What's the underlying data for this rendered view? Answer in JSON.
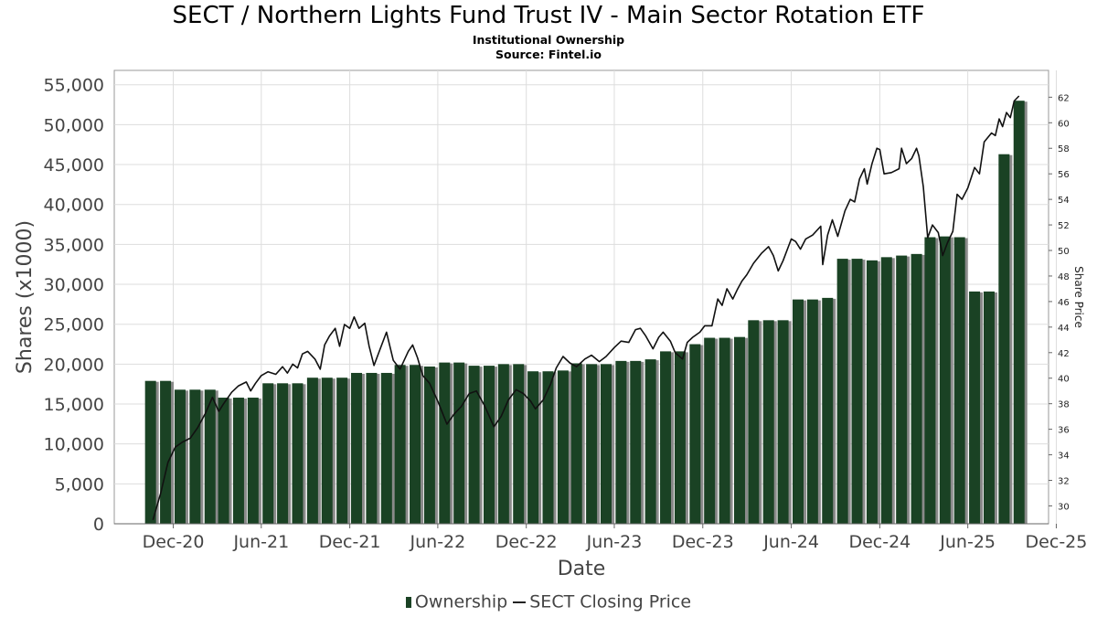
{
  "chart_data": {
    "type": "bar",
    "title": "SECT / Northern Lights Fund Trust IV - Main Sector Rotation ETF",
    "subtitle": "Institutional Ownership",
    "source": "Source: Fintel.io",
    "xlabel": "Date",
    "ylabel": "Shares (x1000)",
    "y2label": "Share Price",
    "x_ticks": [
      "Dec-20",
      "Jun-21",
      "Dec-21",
      "Jun-22",
      "Dec-22",
      "Jun-23",
      "Dec-23",
      "Jun-24",
      "Dec-24",
      "Jun-25",
      "Dec-25"
    ],
    "x_range": [
      "2020-08-01",
      "2025-11-15"
    ],
    "y_ticks": [
      "0",
      "5,000",
      "10,000",
      "15,000",
      "20,000",
      "25,000",
      "30,000",
      "35,000",
      "40,000",
      "45,000",
      "50,000",
      "55,000"
    ],
    "ylim": [
      0,
      56000
    ],
    "y2_ticks": [
      "30",
      "32",
      "34",
      "36",
      "38",
      "40",
      "42",
      "44",
      "46",
      "48",
      "50",
      "52",
      "54",
      "56",
      "58",
      "60",
      "62"
    ],
    "y2lim": [
      28.6,
      63.6
    ],
    "grid": true,
    "legend_position": "bottom-center",
    "colors": {
      "bar": "#1a4224",
      "bar_shadow": "#8a8a8a",
      "line": "#111111",
      "grid": "#dddddd"
    },
    "series": [
      {
        "name": "Ownership",
        "kind": "bar",
        "points": [
          [
            "2020-10-15",
            17900
          ],
          [
            "2020-11-15",
            17900
          ],
          [
            "2020-12-15",
            16800
          ],
          [
            "2021-01-15",
            16800
          ],
          [
            "2021-02-15",
            16800
          ],
          [
            "2021-03-15",
            15800
          ],
          [
            "2021-04-15",
            15800
          ],
          [
            "2021-05-15",
            15800
          ],
          [
            "2021-06-15",
            17600
          ],
          [
            "2021-07-15",
            17600
          ],
          [
            "2021-08-15",
            17600
          ],
          [
            "2021-09-15",
            18300
          ],
          [
            "2021-10-15",
            18300
          ],
          [
            "2021-11-15",
            18300
          ],
          [
            "2021-12-15",
            18900
          ],
          [
            "2022-01-15",
            18900
          ],
          [
            "2022-02-15",
            18900
          ],
          [
            "2022-03-15",
            19900
          ],
          [
            "2022-04-15",
            19900
          ],
          [
            "2022-05-15",
            19700
          ],
          [
            "2022-06-15",
            20200
          ],
          [
            "2022-07-15",
            20200
          ],
          [
            "2022-08-15",
            19800
          ],
          [
            "2022-09-15",
            19800
          ],
          [
            "2022-10-15",
            20000
          ],
          [
            "2022-11-15",
            20000
          ],
          [
            "2022-12-15",
            19100
          ],
          [
            "2023-01-15",
            19100
          ],
          [
            "2023-02-15",
            19200
          ],
          [
            "2023-03-15",
            20100
          ],
          [
            "2023-04-15",
            20000
          ],
          [
            "2023-05-15",
            20000
          ],
          [
            "2023-06-15",
            20400
          ],
          [
            "2023-07-15",
            20400
          ],
          [
            "2023-08-15",
            20600
          ],
          [
            "2023-09-15",
            21600
          ],
          [
            "2023-10-15",
            21600
          ],
          [
            "2023-11-15",
            22500
          ],
          [
            "2023-12-15",
            23300
          ],
          [
            "2024-01-15",
            23300
          ],
          [
            "2024-02-15",
            23400
          ],
          [
            "2024-03-15",
            25500
          ],
          [
            "2024-04-15",
            25500
          ],
          [
            "2024-05-15",
            25500
          ],
          [
            "2024-06-15",
            28100
          ],
          [
            "2024-07-15",
            28100
          ],
          [
            "2024-08-15",
            28300
          ],
          [
            "2024-09-15",
            33200
          ],
          [
            "2024-10-15",
            33200
          ],
          [
            "2024-11-15",
            33000
          ],
          [
            "2024-12-15",
            33400
          ],
          [
            "2025-01-15",
            33600
          ],
          [
            "2025-02-15",
            33800
          ],
          [
            "2025-03-15",
            35900
          ],
          [
            "2025-04-15",
            36000
          ],
          [
            "2025-05-15",
            35900
          ],
          [
            "2025-06-15",
            29100
          ],
          [
            "2025-07-15",
            29100
          ],
          [
            "2025-08-15",
            46300
          ],
          [
            "2025-09-15",
            53000
          ]
        ]
      },
      {
        "name": "SECT Closing Price",
        "kind": "line",
        "points": [
          [
            "2020-10-20",
            28.9
          ],
          [
            "2020-11-05",
            31.0
          ],
          [
            "2020-11-20",
            33.4
          ],
          [
            "2020-12-05",
            34.6
          ],
          [
            "2020-12-20",
            35.0
          ],
          [
            "2021-01-05",
            35.3
          ],
          [
            "2021-01-20",
            36.1
          ],
          [
            "2021-02-05",
            37.2
          ],
          [
            "2021-02-20",
            38.5
          ],
          [
            "2021-03-05",
            37.4
          ],
          [
            "2021-03-15",
            38.0
          ],
          [
            "2021-04-01",
            38.9
          ],
          [
            "2021-04-15",
            39.4
          ],
          [
            "2021-05-01",
            39.7
          ],
          [
            "2021-05-10",
            39.0
          ],
          [
            "2021-05-20",
            39.6
          ],
          [
            "2021-06-01",
            40.2
          ],
          [
            "2021-06-15",
            40.5
          ],
          [
            "2021-07-01",
            40.3
          ],
          [
            "2021-07-15",
            40.9
          ],
          [
            "2021-07-25",
            40.4
          ],
          [
            "2021-08-05",
            41.1
          ],
          [
            "2021-08-15",
            40.8
          ],
          [
            "2021-08-25",
            41.9
          ],
          [
            "2021-09-05",
            42.1
          ],
          [
            "2021-09-20",
            41.5
          ],
          [
            "2021-10-01",
            40.7
          ],
          [
            "2021-10-10",
            42.6
          ],
          [
            "2021-10-20",
            43.3
          ],
          [
            "2021-11-01",
            43.9
          ],
          [
            "2021-11-10",
            42.5
          ],
          [
            "2021-11-20",
            44.2
          ],
          [
            "2021-12-01",
            43.9
          ],
          [
            "2021-12-10",
            44.8
          ],
          [
            "2021-12-20",
            43.9
          ],
          [
            "2022-01-01",
            44.3
          ],
          [
            "2022-01-10",
            42.5
          ],
          [
            "2022-01-20",
            41.0
          ],
          [
            "2022-02-01",
            42.2
          ],
          [
            "2022-02-15",
            43.6
          ],
          [
            "2022-03-01",
            41.4
          ],
          [
            "2022-03-15",
            40.7
          ],
          [
            "2022-04-01",
            42.1
          ],
          [
            "2022-04-10",
            42.6
          ],
          [
            "2022-04-20",
            41.6
          ],
          [
            "2022-05-01",
            40.2
          ],
          [
            "2022-05-15",
            39.6
          ],
          [
            "2022-06-01",
            38.2
          ],
          [
            "2022-06-20",
            36.4
          ],
          [
            "2022-07-05",
            37.2
          ],
          [
            "2022-07-20",
            37.8
          ],
          [
            "2022-08-05",
            38.8
          ],
          [
            "2022-08-20",
            39.0
          ],
          [
            "2022-09-05",
            37.9
          ],
          [
            "2022-09-25",
            36.2
          ],
          [
            "2022-10-10",
            37.0
          ],
          [
            "2022-10-25",
            38.3
          ],
          [
            "2022-11-10",
            39.1
          ],
          [
            "2022-11-25",
            38.8
          ],
          [
            "2022-12-10",
            38.2
          ],
          [
            "2022-12-20",
            37.6
          ],
          [
            "2023-01-05",
            38.3
          ],
          [
            "2023-01-20",
            39.5
          ],
          [
            "2023-02-01",
            40.8
          ],
          [
            "2023-02-15",
            41.7
          ],
          [
            "2023-03-01",
            41.2
          ],
          [
            "2023-03-15",
            40.9
          ],
          [
            "2023-04-01",
            41.5
          ],
          [
            "2023-04-15",
            41.8
          ],
          [
            "2023-05-01",
            41.3
          ],
          [
            "2023-05-15",
            41.7
          ],
          [
            "2023-06-01",
            42.4
          ],
          [
            "2023-06-15",
            42.9
          ],
          [
            "2023-07-01",
            42.8
          ],
          [
            "2023-07-15",
            43.8
          ],
          [
            "2023-07-25",
            43.9
          ],
          [
            "2023-08-05",
            43.3
          ],
          [
            "2023-08-20",
            42.3
          ],
          [
            "2023-09-01",
            43.2
          ],
          [
            "2023-09-10",
            43.6
          ],
          [
            "2023-09-25",
            42.9
          ],
          [
            "2023-10-05",
            42.0
          ],
          [
            "2023-10-20",
            41.5
          ],
          [
            "2023-10-30",
            42.8
          ],
          [
            "2023-11-10",
            43.2
          ],
          [
            "2023-11-25",
            43.6
          ],
          [
            "2023-12-05",
            44.1
          ],
          [
            "2023-12-20",
            44.1
          ],
          [
            "2024-01-01",
            46.2
          ],
          [
            "2024-01-10",
            45.7
          ],
          [
            "2024-01-20",
            47.0
          ],
          [
            "2024-02-01",
            46.2
          ],
          [
            "2024-02-10",
            46.9
          ],
          [
            "2024-02-20",
            47.6
          ],
          [
            "2024-03-01",
            48.1
          ],
          [
            "2024-03-15",
            49.0
          ],
          [
            "2024-04-01",
            49.8
          ],
          [
            "2024-04-15",
            50.3
          ],
          [
            "2024-04-25",
            49.6
          ],
          [
            "2024-05-05",
            48.4
          ],
          [
            "2024-05-15",
            49.2
          ],
          [
            "2024-06-01",
            50.9
          ],
          [
            "2024-06-10",
            50.7
          ],
          [
            "2024-06-20",
            50.1
          ],
          [
            "2024-07-01",
            50.9
          ],
          [
            "2024-07-15",
            51.2
          ],
          [
            "2024-08-01",
            51.9
          ],
          [
            "2024-08-05",
            48.9
          ],
          [
            "2024-08-15",
            51.2
          ],
          [
            "2024-08-25",
            52.4
          ],
          [
            "2024-09-05",
            51.1
          ],
          [
            "2024-09-20",
            53.1
          ],
          [
            "2024-10-01",
            54.0
          ],
          [
            "2024-10-10",
            53.8
          ],
          [
            "2024-10-20",
            55.6
          ],
          [
            "2024-10-30",
            56.4
          ],
          [
            "2024-11-05",
            55.2
          ],
          [
            "2024-11-15",
            56.8
          ],
          [
            "2024-11-25",
            58.0
          ],
          [
            "2024-12-01",
            57.9
          ],
          [
            "2024-12-10",
            56.0
          ],
          [
            "2024-12-25",
            56.1
          ],
          [
            "2025-01-10",
            56.4
          ],
          [
            "2025-01-15",
            58.0
          ],
          [
            "2025-01-25",
            56.8
          ],
          [
            "2025-02-05",
            57.2
          ],
          [
            "2025-02-15",
            58.0
          ],
          [
            "2025-02-20",
            57.4
          ],
          [
            "2025-03-01",
            55.0
          ],
          [
            "2025-03-10",
            51.0
          ],
          [
            "2025-03-20",
            52.0
          ],
          [
            "2025-04-01",
            51.4
          ],
          [
            "2025-04-10",
            49.6
          ],
          [
            "2025-04-20",
            50.6
          ],
          [
            "2025-05-01",
            51.5
          ],
          [
            "2025-05-10",
            54.4
          ],
          [
            "2025-05-20",
            54.0
          ],
          [
            "2025-06-01",
            54.9
          ],
          [
            "2025-06-15",
            56.5
          ],
          [
            "2025-06-25",
            56.0
          ],
          [
            "2025-07-05",
            58.5
          ],
          [
            "2025-07-20",
            59.2
          ],
          [
            "2025-07-28",
            59.0
          ],
          [
            "2025-08-05",
            60.3
          ],
          [
            "2025-08-12",
            59.7
          ],
          [
            "2025-08-20",
            60.8
          ],
          [
            "2025-08-28",
            60.4
          ],
          [
            "2025-09-05",
            61.7
          ],
          [
            "2025-09-15",
            62.1
          ]
        ]
      }
    ]
  },
  "legend": {
    "items": [
      {
        "label": "Ownership",
        "icon": "bar-swatch"
      },
      {
        "label": "SECT Closing Price",
        "icon": "line-swatch"
      }
    ]
  }
}
